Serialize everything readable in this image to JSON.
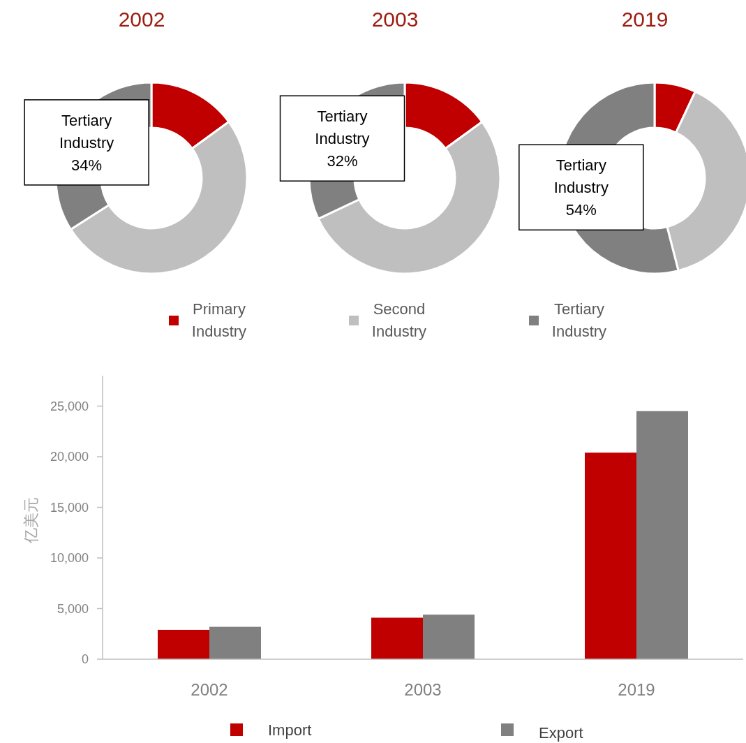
{
  "chart_data": [
    {
      "type": "donut",
      "title": "2002",
      "categories": [
        null,
        null,
        null
      ],
      "values": [
        15,
        51,
        34
      ],
      "colors": [
        "#c00000",
        "#bfbfbf",
        "#808080"
      ],
      "value_labels": [
        null,
        null,
        "Tertiary\nIndustry\n34%"
      ]
    },
    {
      "type": "donut",
      "title": "2003",
      "categories": [
        "Primary Industry",
        "Second Industry",
        "Tertiary Industry"
      ],
      "values": [
        15,
        53,
        32
      ],
      "colors": [
        "#c00000",
        "#bfbfbf",
        "#808080"
      ],
      "value_labels": [
        null,
        null,
        "Tertiary\nIndustry\n32%"
      ],
      "legend": "bottom"
    },
    {
      "type": "donut",
      "title": "2019",
      "categories": [
        null,
        null,
        null
      ],
      "values": [
        7,
        39,
        54
      ],
      "colors": [
        "#c00000",
        "#bfbfbf",
        "#808080"
      ],
      "value_labels": [
        null,
        null,
        "Tertiary\nIndustry\n54%"
      ]
    },
    {
      "type": "bar",
      "categories": [
        "2002",
        "2003",
        "2019"
      ],
      "ylabel": "亿美元",
      "ylim": [
        0,
        28000
      ],
      "yticks": [
        0,
        {
          "value": 5000,
          "label": "5,000"
        },
        {
          "value": 10000,
          "label": "10,000"
        },
        {
          "value": 15000,
          "label": "15,000"
        },
        {
          "value": 20000,
          "label": "20,000"
        },
        {
          "value": 25000,
          "label": "25,000"
        }
      ],
      "legend": "bottom",
      "grid": false,
      "series": [
        {
          "name": "Import",
          "color": "#c00000",
          "values": [
            2900,
            4100,
            20400
          ]
        },
        {
          "name": "Export",
          "color": "#808080",
          "values": [
            3200,
            4400,
            24500
          ]
        }
      ]
    }
  ]
}
